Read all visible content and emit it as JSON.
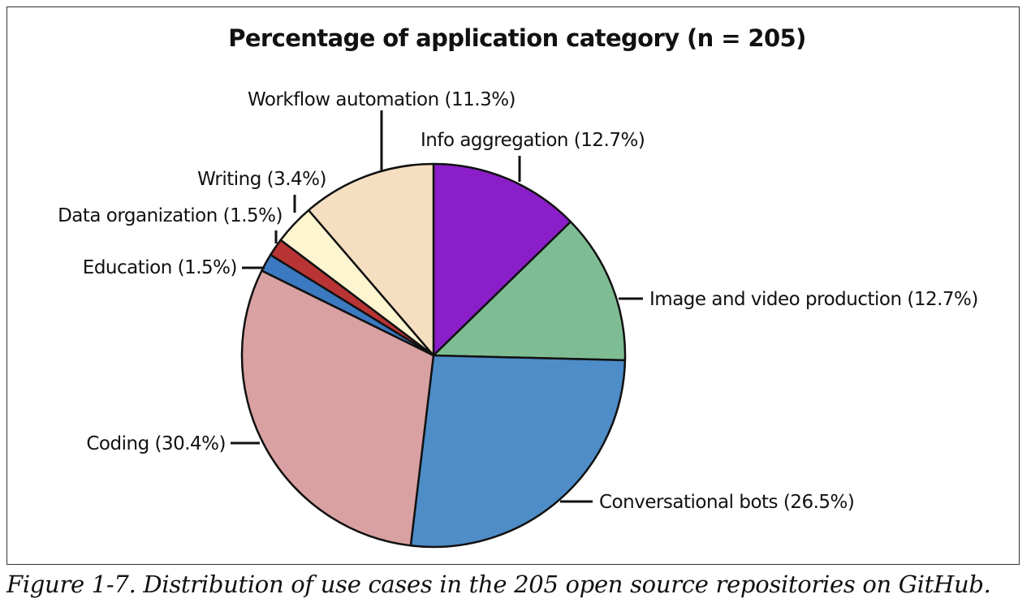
{
  "caption": "Figure 1-7. Distribution of use cases in the 205 open source repositories on GitHub.",
  "chart_data": {
    "type": "pie",
    "title": "Percentage of application category (n = 205)",
    "slices": [
      {
        "label": "Info aggregation (12.7%)",
        "category": "Info aggregation",
        "value": 12.7,
        "color": "#8a1ec8"
      },
      {
        "label": "Image and video production (12.7%)",
        "category": "Image and video production",
        "value": 12.7,
        "color": "#7ebd93"
      },
      {
        "label": "Conversational bots (26.5%)",
        "category": "Conversational bots",
        "value": 26.5,
        "color": "#4e8dc8"
      },
      {
        "label": "Coding (30.4%)",
        "category": "Coding",
        "value": 30.4,
        "color": "#d9a1a2"
      },
      {
        "label": "Education (1.5%)",
        "category": "Education",
        "value": 1.5,
        "color": "#3b79c0"
      },
      {
        "label": "Data organization (1.5%)",
        "category": "Data organization",
        "value": 1.5,
        "color": "#b93434"
      },
      {
        "label": "Writing (3.4%)",
        "category": "Writing",
        "value": 3.4,
        "color": "#fcf5d0"
      },
      {
        "label": "Workflow automation (11.3%)",
        "category": "Workflow automation",
        "value": 11.3,
        "color": "#f6dfc1"
      }
    ],
    "start": "12 o'clock",
    "direction": "clockwise",
    "legend": "none"
  }
}
